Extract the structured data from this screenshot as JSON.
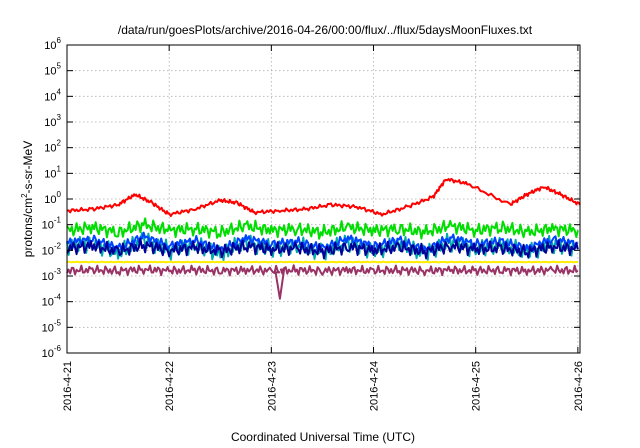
{
  "chart_data": {
    "type": "line",
    "title": "/data/run/goesPlots/archive/2016-04-26/00:00/flux/../flux/5daysMoonFluxes.txt",
    "xlabel": "Coordinated Universal Time (UTC)",
    "ylabel": "protons/cm²-s-sr-MeV",
    "ylabel_parts": {
      "pre": "protons/cm",
      "sup": "2",
      "post": "-s-sr-MeV"
    },
    "y_scale": "log",
    "ylim": [
      1e-06,
      1000000.0
    ],
    "xlim": [
      "2016-04-21",
      "2016-04-26 00:30"
    ],
    "grid": true,
    "x_ticks": [
      "2016-4-21",
      "2016-4-22",
      "2016-4-23",
      "2016-4-24",
      "2016-4-25",
      "2016-4-26"
    ],
    "y_ticks": [
      {
        "base": "10",
        "exp": "-6"
      },
      {
        "base": "10",
        "exp": "-5"
      },
      {
        "base": "10",
        "exp": "-4"
      },
      {
        "base": "10",
        "exp": "-3"
      },
      {
        "base": "10",
        "exp": "-2"
      },
      {
        "base": "10",
        "exp": "-1"
      },
      {
        "base": "10",
        "exp": "0"
      },
      {
        "base": "10",
        "exp": "1"
      },
      {
        "base": "10",
        "exp": "2"
      },
      {
        "base": "10",
        "exp": "3"
      },
      {
        "base": "10",
        "exp": "4"
      },
      {
        "base": "10",
        "exp": "5"
      },
      {
        "base": "10",
        "exp": "6"
      }
    ],
    "x_dates": [
      "2016-04-21 00:00",
      "2016-04-21 06:00",
      "2016-04-21 12:00",
      "2016-04-21 18:00",
      "2016-04-22 00:00",
      "2016-04-22 06:00",
      "2016-04-22 12:00",
      "2016-04-22 18:00",
      "2016-04-23 00:00",
      "2016-04-23 06:00",
      "2016-04-23 12:00",
      "2016-04-23 18:00",
      "2016-04-24 00:00",
      "2016-04-24 06:00",
      "2016-04-24 12:00",
      "2016-04-24 18:00",
      "2016-04-25 00:00",
      "2016-04-25 06:00",
      "2016-04-25 12:00",
      "2016-04-25 18:00",
      "2016-04-26 00:00"
    ],
    "series": [
      {
        "color": "#ff0000",
        "values": [
          0.35,
          0.4,
          0.6,
          1.5,
          0.7,
          0.25,
          0.4,
          0.9,
          0.7,
          0.3,
          0.35,
          0.4,
          0.6,
          0.5,
          0.25,
          0.5,
          1.2,
          6,
          4,
          0.6,
          1.5,
          3,
          1.5,
          0.6
        ],
        "x": [
          "2016-04-21 00:00",
          "2016-04-21 06:00",
          "2016-04-21 12:00",
          "2016-04-21 16:00",
          "2016-04-21 20:00",
          "2016-04-22 00:00",
          "2016-04-22 06:00",
          "2016-04-22 12:00",
          "2016-04-22 16:00",
          "2016-04-22 20:00",
          "2016-04-23 02:00",
          "2016-04-23 08:00",
          "2016-04-23 14:00",
          "2016-04-23 20:00",
          "2016-04-24 02:00",
          "2016-04-24 08:00",
          "2016-04-24 14:00",
          "2016-04-24 17:00",
          "2016-04-24 22:00",
          "2016-04-25 08:00",
          "2016-04-25 12:00",
          "2016-04-25 16:00",
          "2016-04-25 20:00",
          "2016-04-26 00:30"
        ]
      },
      {
        "color": "#00dd00",
        "values": [
          0.06,
          0.08,
          0.05,
          0.1,
          0.06,
          0.07,
          0.05,
          0.09,
          0.06,
          0.07,
          0.05,
          0.08,
          0.06,
          0.07,
          0.05,
          0.09,
          0.06,
          0.08,
          0.05,
          0.07,
          0.06
        ]
      },
      {
        "color": "#00aaaa",
        "values": [
          0.015,
          0.02,
          0.008,
          0.025,
          0.01,
          0.018,
          0.007,
          0.02,
          0.012,
          0.016,
          0.008,
          0.02,
          0.01,
          0.018,
          0.007,
          0.022,
          0.012,
          0.016,
          0.008,
          0.018,
          0.012
        ]
      },
      {
        "color": "#0044ff",
        "values": [
          0.02,
          0.028,
          0.012,
          0.035,
          0.015,
          0.025,
          0.01,
          0.03,
          0.018,
          0.022,
          0.012,
          0.03,
          0.015,
          0.025,
          0.01,
          0.032,
          0.018,
          0.022,
          0.012,
          0.028,
          0.018
        ]
      },
      {
        "color": "#000099",
        "values": [
          0.012,
          0.015,
          0.009,
          0.016,
          0.01,
          0.013,
          0.009,
          0.015,
          0.011,
          0.012,
          0.009,
          0.014,
          0.01,
          0.013,
          0.009,
          0.015,
          0.011,
          0.012,
          0.009,
          0.014,
          0.011
        ]
      },
      {
        "color": "#ffee00",
        "values": [
          0.0035,
          0.0035,
          0.0035,
          0.0035,
          0.0035,
          0.0035,
          0.0035,
          0.0035,
          0.0035,
          0.0035,
          0.0035,
          0.0035,
          0.0035,
          0.0035,
          0.0035,
          0.0035,
          0.0035,
          0.0035,
          0.0035,
          0.0035,
          0.0035
        ]
      },
      {
        "color": "#993366",
        "values": [
          0.0016,
          0.0017,
          0.0016,
          0.0018,
          0.0016,
          0.0017,
          0.0016,
          0.0017,
          0.0016,
          0.0017,
          0.0016,
          0.0017,
          0.0016,
          0.0017,
          0.0016,
          0.0017,
          0.0016,
          0.0017,
          0.0016,
          0.0017,
          0.0016
        ],
        "dip": {
          "x": "2016-04-23 02:00",
          "value": 0.00013
        }
      }
    ]
  }
}
